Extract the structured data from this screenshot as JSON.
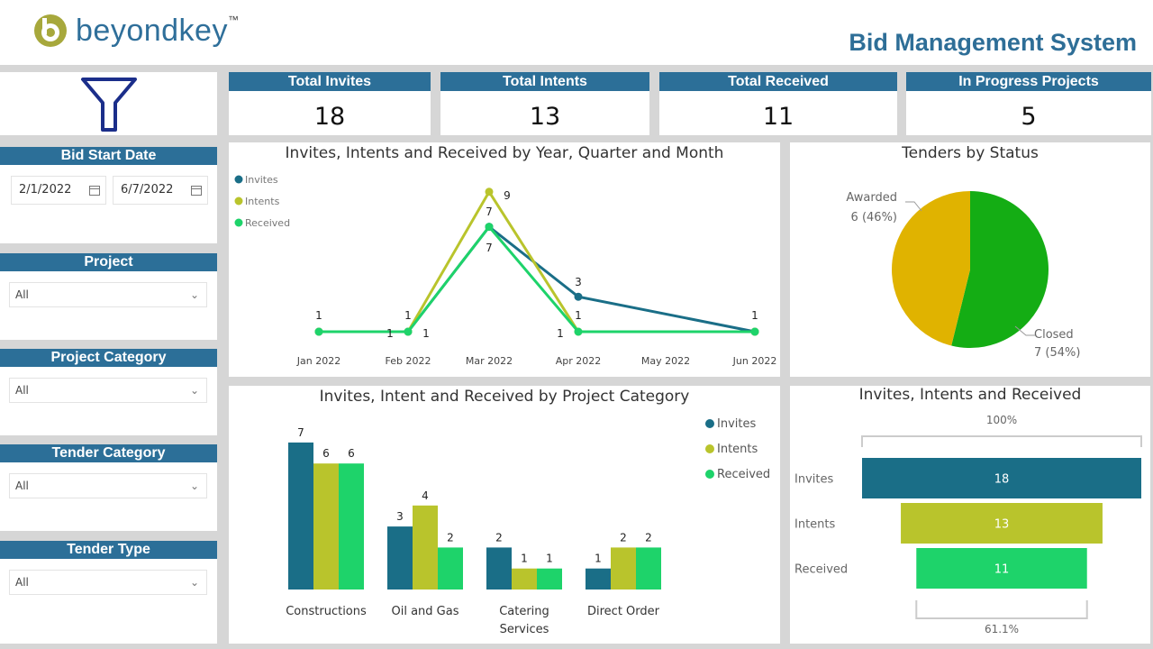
{
  "header": {
    "logo_text": "beyondkey",
    "logo_tm": "™",
    "title": "Bid Management System"
  },
  "kpis": [
    {
      "label": "Total Invites",
      "value": "18"
    },
    {
      "label": "Total Intents",
      "value": "13"
    },
    {
      "label": "Total Received",
      "value": "11"
    },
    {
      "label": "In Progress Projects",
      "value": "5"
    }
  ],
  "filters": {
    "bid_start_date": {
      "title": "Bid Start Date",
      "from": "2/1/2022",
      "to": "6/7/2022"
    },
    "project": {
      "title": "Project",
      "value": "All"
    },
    "project_category": {
      "title": "Project Category",
      "value": "All"
    },
    "tender_category": {
      "title": "Tender Category",
      "value": "All"
    },
    "tender_type": {
      "title": "Tender Type",
      "value": "All"
    }
  },
  "colors": {
    "invites": "#1a6e87",
    "intents": "#b9c42c",
    "received": "#1ed36a",
    "awarded": "#e0b300",
    "closed": "#14ad14",
    "header_blue": "#2c6f98"
  },
  "chart_data": [
    {
      "id": "line",
      "type": "line",
      "title": "Invites, Intents and Received by Year, Quarter and Month",
      "categories": [
        "Jan 2022",
        "Feb 2022",
        "Mar 2022",
        "Apr 2022",
        "May 2022",
        "Jun 2022"
      ],
      "series": [
        {
          "name": "Invites",
          "points": [
            [
              0,
              1
            ],
            [
              1,
              1
            ],
            [
              2,
              7
            ],
            [
              3,
              3
            ],
            [
              5,
              1
            ]
          ]
        },
        {
          "name": "Intents",
          "points": [
            [
              0,
              1
            ],
            [
              1,
              1
            ],
            [
              2,
              9
            ],
            [
              3,
              1
            ],
            [
              5,
              1
            ]
          ]
        },
        {
          "name": "Received",
          "points": [
            [
              0,
              1
            ],
            [
              1,
              1
            ],
            [
              2,
              7
            ],
            [
              3,
              1
            ],
            [
              5,
              1
            ]
          ]
        }
      ],
      "labels": {
        "invites": [
          "1",
          "1",
          "7",
          "3",
          "1"
        ],
        "intents": [
          "1",
          "9",
          "1"
        ],
        "received": [
          "1",
          "7",
          "1"
        ]
      },
      "ylim": [
        0,
        10
      ]
    },
    {
      "id": "pie",
      "type": "pie",
      "title": "Tenders by Status",
      "slices": [
        {
          "name": "Closed",
          "value": 7,
          "pct": "54%",
          "value_label": "7 (54%)"
        },
        {
          "name": "Awarded",
          "value": 6,
          "pct": "46%",
          "value_label": "6 (46%)"
        }
      ]
    },
    {
      "id": "bar",
      "type": "bar",
      "title": "Invites, Intent and Received by Project Category",
      "categories": [
        "Constructions",
        "Oil and Gas",
        "Catering Services",
        "Direct Order"
      ],
      "category_lines": [
        [
          "Constructions"
        ],
        [
          "Oil and Gas"
        ],
        [
          "Catering",
          "Services"
        ],
        [
          "Direct Order"
        ]
      ],
      "series": [
        {
          "name": "Invites",
          "values": [
            7,
            3,
            2,
            1
          ]
        },
        {
          "name": "Intents",
          "values": [
            6,
            4,
            1,
            2
          ]
        },
        {
          "name": "Received",
          "values": [
            6,
            2,
            1,
            2
          ]
        }
      ],
      "ylim": [
        0,
        8
      ]
    },
    {
      "id": "funnel",
      "type": "funnel",
      "title": "Invites, Intents and Received",
      "stages": [
        {
          "name": "Invites",
          "value": 18
        },
        {
          "name": "Intents",
          "value": 13
        },
        {
          "name": "Received",
          "value": 11
        }
      ],
      "top_pct": "100%",
      "bottom_pct": "61.1%"
    }
  ]
}
